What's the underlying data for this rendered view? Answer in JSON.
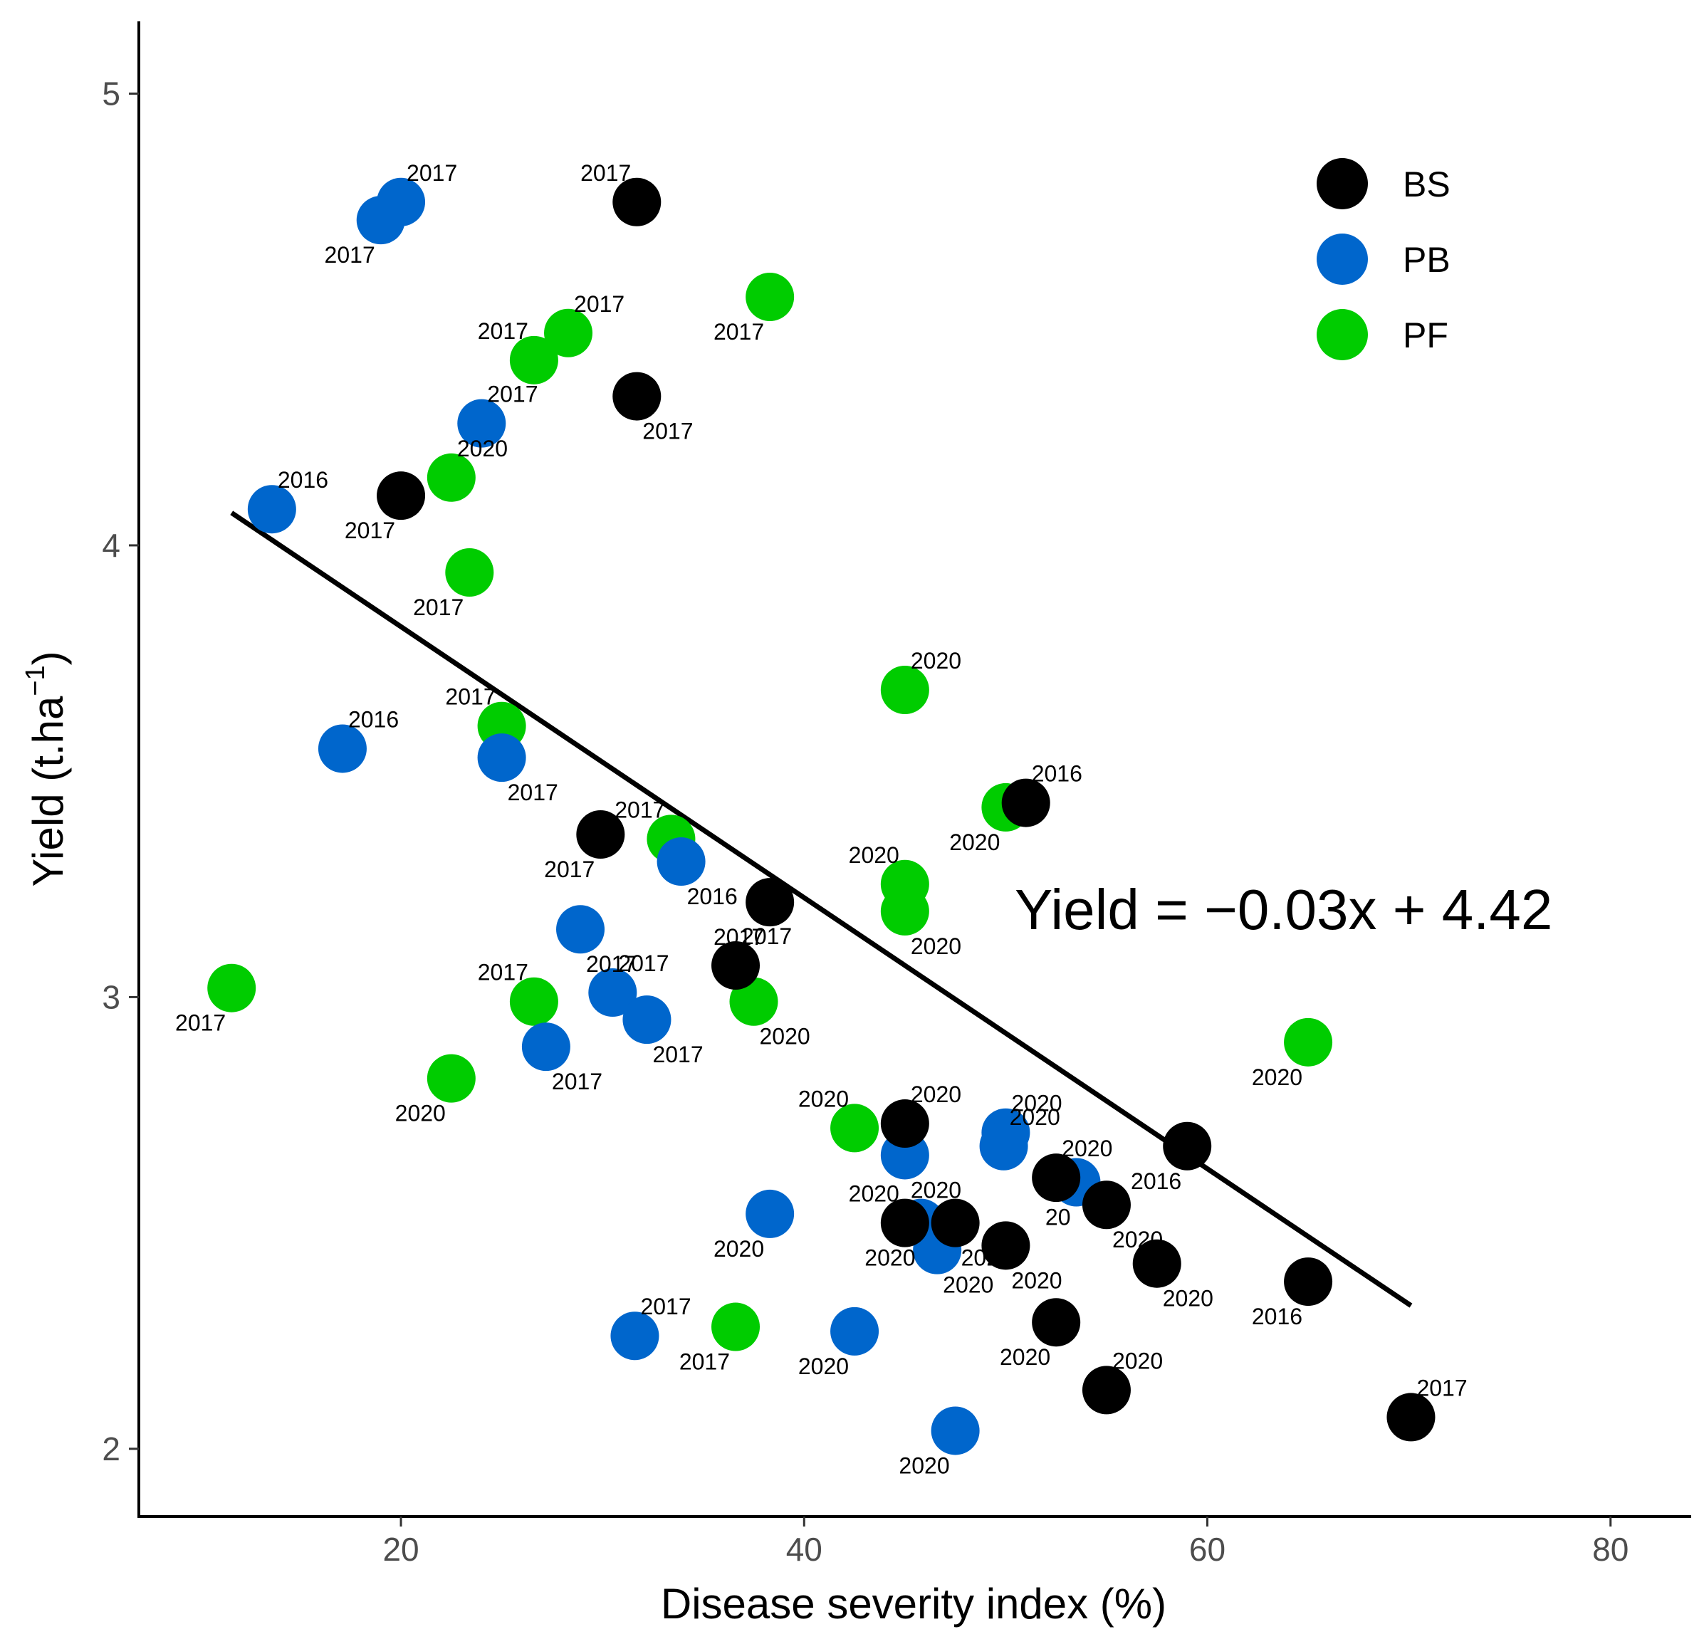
{
  "chart_data": {
    "type": "scatter",
    "xlabel": "Disease severity index (%)",
    "ylabel": "Yield (t.ha",
    "ylabel_superscript": "−1",
    "ylabel_close": ")",
    "xlim": [
      7,
      84
    ],
    "ylim": [
      1.85,
      5.16
    ],
    "xticks": [
      {
        "value": 20,
        "label": "20"
      },
      {
        "value": 40,
        "label": "40"
      },
      {
        "value": 60,
        "label": "60"
      },
      {
        "value": 80,
        "label": "80"
      }
    ],
    "yticks": [
      {
        "value": 2,
        "label": "2"
      },
      {
        "value": 3,
        "label": "3"
      },
      {
        "value": 4,
        "label": "4"
      },
      {
        "value": 5,
        "label": "5"
      }
    ],
    "legend": [
      {
        "name": "BS",
        "color": "#000000"
      },
      {
        "name": "PB",
        "color": "#0066cc"
      },
      {
        "name": "PF",
        "color": "#00cc00"
      }
    ],
    "regression": {
      "slope": -0.03,
      "intercept": 4.42,
      "x_start": 11.6,
      "x_end": 70.1,
      "equation": "Yield = −0.03x + 4.42"
    },
    "series": [
      {
        "name": "BS",
        "points": [
          {
            "x": 31.7,
            "y": 4.76,
            "label": "2017",
            "anchor": "nw"
          },
          {
            "x": 31.7,
            "y": 4.33,
            "label": "2017",
            "anchor": "se"
          },
          {
            "x": 20.0,
            "y": 4.11,
            "label": "2017",
            "anchor": "sw"
          },
          {
            "x": 29.9,
            "y": 3.36,
            "label": "2017",
            "anchor": "sw"
          },
          {
            "x": 38.3,
            "y": 3.21,
            "label": "2017",
            "anchor": "sw"
          },
          {
            "x": 36.6,
            "y": 3.07,
            "label": "2017",
            "anchor": "ne"
          },
          {
            "x": 51.0,
            "y": 3.43,
            "label": "2016",
            "anchor": "ne"
          },
          {
            "x": 45.0,
            "y": 2.72,
            "label": "2020",
            "anchor": "ne"
          },
          {
            "x": 59.0,
            "y": 2.67,
            "label": "2016",
            "anchor": "sw"
          },
          {
            "x": 52.5,
            "y": 2.6,
            "label": "2020",
            "anchor": "ne"
          },
          {
            "x": 55.0,
            "y": 2.54,
            "label": "2020",
            "anchor": "se"
          },
          {
            "x": 45.0,
            "y": 2.5,
            "label": "2020",
            "anchor": "nw"
          },
          {
            "x": 47.5,
            "y": 2.5,
            "label": "2020",
            "anchor": "se"
          },
          {
            "x": 50.0,
            "y": 2.45,
            "label": "2020",
            "anchor": "se"
          },
          {
            "x": 57.5,
            "y": 2.41,
            "label": "2020",
            "anchor": "se"
          },
          {
            "x": 65.0,
            "y": 2.37,
            "label": "2016",
            "anchor": "sw"
          },
          {
            "x": 52.5,
            "y": 2.28,
            "label": "2020",
            "anchor": "sw"
          },
          {
            "x": 55.0,
            "y": 2.13,
            "label": "2020",
            "anchor": "ne"
          },
          {
            "x": 70.1,
            "y": 2.07,
            "label": "2017",
            "anchor": "ne"
          }
        ]
      },
      {
        "name": "PB",
        "points": [
          {
            "x": 20.0,
            "y": 4.76,
            "label": "2017",
            "anchor": "ne"
          },
          {
            "x": 19.0,
            "y": 4.72,
            "label": "2017",
            "anchor": "sw"
          },
          {
            "x": 24.0,
            "y": 4.27,
            "label": "2017",
            "anchor": "ne"
          },
          {
            "x": 13.6,
            "y": 4.08,
            "label": "2016",
            "anchor": "ne"
          },
          {
            "x": 17.1,
            "y": 3.55,
            "label": "2016",
            "anchor": "ne"
          },
          {
            "x": 25.0,
            "y": 3.53,
            "label": "2017",
            "anchor": "se"
          },
          {
            "x": 33.9,
            "y": 3.3,
            "label": "2016",
            "anchor": "se"
          },
          {
            "x": 28.9,
            "y": 3.15,
            "label": "2017",
            "anchor": "se"
          },
          {
            "x": 30.5,
            "y": 3.01,
            "label": "2017",
            "anchor": "ne"
          },
          {
            "x": 32.2,
            "y": 2.95,
            "label": "2017",
            "anchor": "se"
          },
          {
            "x": 27.2,
            "y": 2.89,
            "label": "2017",
            "anchor": "se"
          },
          {
            "x": 50.0,
            "y": 2.7,
            "label": "2020",
            "anchor": "ne"
          },
          {
            "x": 45.0,
            "y": 2.65,
            "label": "2020",
            "anchor": "se"
          },
          {
            "x": 49.9,
            "y": 2.67,
            "label": "2020",
            "anchor": "ne"
          },
          {
            "x": 53.5,
            "y": 2.59,
            "label": "20",
            "anchor": "sw"
          },
          {
            "x": 38.3,
            "y": 2.52,
            "label": "2020",
            "anchor": "sw"
          },
          {
            "x": 45.8,
            "y": 2.5,
            "label": "2020",
            "anchor": "sw"
          },
          {
            "x": 46.6,
            "y": 2.44,
            "label": "2020",
            "anchor": "se"
          },
          {
            "x": 31.6,
            "y": 2.25,
            "label": "2017",
            "anchor": "ne"
          },
          {
            "x": 42.5,
            "y": 2.26,
            "label": "2020",
            "anchor": "sw"
          },
          {
            "x": 47.5,
            "y": 2.04,
            "label": "2020",
            "anchor": "sw"
          }
        ]
      },
      {
        "name": "PF",
        "points": [
          {
            "x": 38.3,
            "y": 4.55,
            "label": "2017",
            "anchor": "sw"
          },
          {
            "x": 28.3,
            "y": 4.47,
            "label": "2017",
            "anchor": "ne"
          },
          {
            "x": 26.6,
            "y": 4.41,
            "label": "2017",
            "anchor": "nw"
          },
          {
            "x": 22.5,
            "y": 4.15,
            "label": "2020",
            "anchor": "ne"
          },
          {
            "x": 23.4,
            "y": 3.94,
            "label": "2017",
            "anchor": "sw"
          },
          {
            "x": 45.0,
            "y": 3.68,
            "label": "2020",
            "anchor": "ne"
          },
          {
            "x": 25.0,
            "y": 3.6,
            "label": "2017",
            "anchor": "nw"
          },
          {
            "x": 50.0,
            "y": 3.42,
            "label": "2020",
            "anchor": "sw"
          },
          {
            "x": 33.4,
            "y": 3.35,
            "label": "2017",
            "anchor": "nw"
          },
          {
            "x": 45.0,
            "y": 3.25,
            "label": "2020",
            "anchor": "nw"
          },
          {
            "x": 45.0,
            "y": 3.19,
            "label": "2020",
            "anchor": "se"
          },
          {
            "x": 11.6,
            "y": 3.02,
            "label": "2017",
            "anchor": "sw"
          },
          {
            "x": 26.6,
            "y": 2.99,
            "label": "2017",
            "anchor": "nw"
          },
          {
            "x": 37.5,
            "y": 2.99,
            "label": "2020",
            "anchor": "se"
          },
          {
            "x": 65.0,
            "y": 2.9,
            "label": "2020",
            "anchor": "sw"
          },
          {
            "x": 22.5,
            "y": 2.82,
            "label": "2020",
            "anchor": "sw"
          },
          {
            "x": 42.5,
            "y": 2.71,
            "label": "2020",
            "anchor": "nw"
          },
          {
            "x": 36.6,
            "y": 2.27,
            "label": "2017",
            "anchor": "sw"
          }
        ]
      }
    ]
  }
}
